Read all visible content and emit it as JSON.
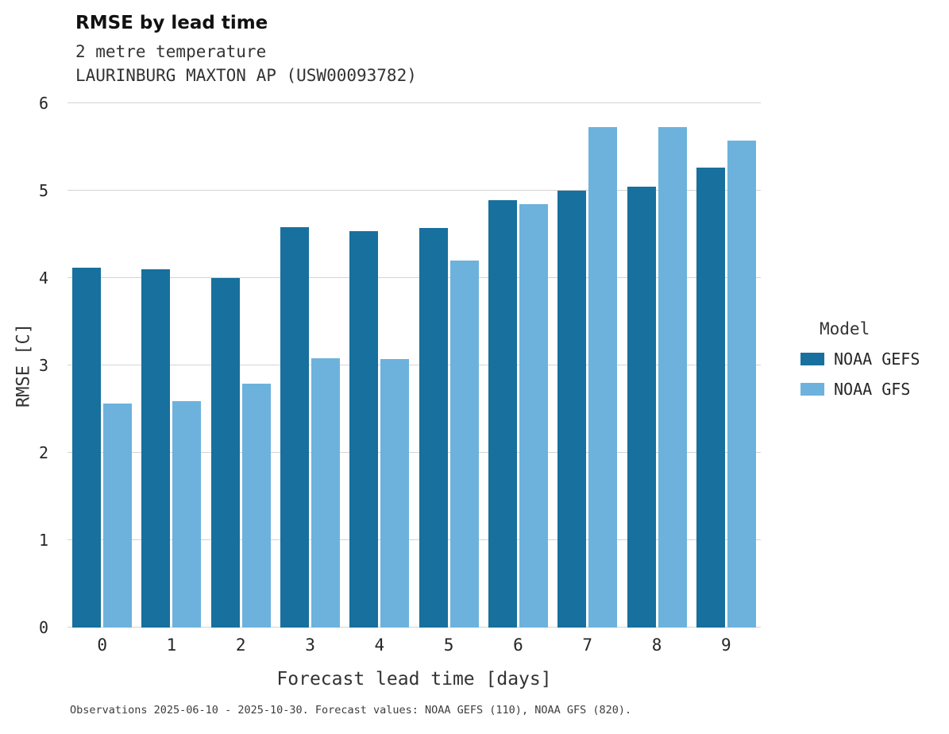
{
  "title": "RMSE by lead time",
  "subtitle1": "2 metre temperature",
  "subtitle2": "LAURINBURG MAXTON AP (USW00093782)",
  "footer": "Observations 2025-06-10 - 2025-10-30. Forecast values: NOAA GEFS (110), NOAA GFS (820).",
  "legend": {
    "title": "Model",
    "items": [
      {
        "label": "NOAA GEFS",
        "color": "#17709d"
      },
      {
        "label": "NOAA GFS",
        "color": "#6cb2dd"
      }
    ]
  },
  "chart_data": {
    "type": "bar",
    "title": "RMSE by lead time",
    "subtitle": "2 metre temperature — LAURINBURG MAXTON AP (USW00093782)",
    "categories": [
      0,
      1,
      2,
      3,
      4,
      5,
      6,
      7,
      8,
      9
    ],
    "series": [
      {
        "name": "NOAA GEFS",
        "color": "#17709d",
        "values": [
          4.12,
          4.1,
          4.0,
          4.58,
          4.54,
          4.57,
          4.89,
          5.0,
          5.05,
          5.26
        ]
      },
      {
        "name": "NOAA GFS",
        "color": "#6cb2dd",
        "values": [
          2.56,
          2.59,
          2.79,
          3.08,
          3.07,
          4.2,
          4.85,
          5.73,
          5.73,
          5.57
        ]
      }
    ],
    "xlabel": "Forecast lead time [days]",
    "ylabel": "RMSE [C]",
    "ylim": [
      0,
      6
    ],
    "yticks": [
      0,
      1,
      2,
      3,
      4,
      5,
      6
    ],
    "grid": true,
    "legend_position": "right"
  }
}
